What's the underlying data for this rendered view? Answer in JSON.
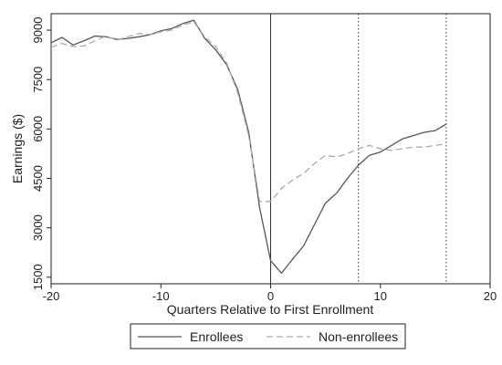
{
  "chart_data": {
    "type": "line",
    "title": "",
    "xlabel": "Quarters Relative to First Enrollment",
    "ylabel": "Earnings ($)",
    "xlim": [
      -20,
      20
    ],
    "ylim": [
      1300,
      9500
    ],
    "xticks": [
      -20,
      -10,
      0,
      10,
      20
    ],
    "xtick_labels": [
      "-20",
      "-10",
      "0",
      "10",
      "20"
    ],
    "yticks": [
      1500,
      3000,
      4500,
      6000,
      7500,
      9000
    ],
    "ytick_labels": [
      "1500",
      "3000",
      "4500",
      "6000",
      "7500",
      "9000"
    ],
    "grid": false,
    "vertical_lines": [
      {
        "x": 0,
        "style": "solid"
      },
      {
        "x": 8,
        "style": "dotted"
      },
      {
        "x": 16,
        "style": "dotted"
      }
    ],
    "legend_position": "bottom",
    "series": [
      {
        "name": "Enrollees",
        "color": "#555555",
        "dash": "solid",
        "x": [
          -20,
          -19,
          -18,
          -17,
          -16,
          -15,
          -14,
          -13,
          -12,
          -11,
          -10,
          -9,
          -8,
          -7,
          -6,
          -5,
          -4,
          -3,
          -2,
          -1,
          0,
          1,
          2,
          3,
          4,
          5,
          6,
          7,
          8,
          9,
          10,
          11,
          12,
          13,
          14,
          15,
          16
        ],
        "values": [
          8620,
          8780,
          8550,
          8680,
          8820,
          8800,
          8720,
          8750,
          8800,
          8860,
          8980,
          9050,
          9200,
          9300,
          8750,
          8400,
          7950,
          7200,
          5900,
          3600,
          2000,
          1620,
          2050,
          2450,
          3100,
          3750,
          4050,
          4500,
          4900,
          5200,
          5300,
          5500,
          5700,
          5800,
          5900,
          5950,
          6150
        ]
      },
      {
        "name": "Non-enrollees",
        "color": "#aaaaaa",
        "dash": "dashed",
        "x": [
          -20,
          -19,
          -18,
          -17,
          -16,
          -15,
          -14,
          -13,
          -12,
          -11,
          -10,
          -9,
          -8,
          -7,
          -6,
          -5,
          -4,
          -3,
          -2,
          -1,
          0,
          1,
          2,
          3,
          4,
          5,
          6,
          7,
          8,
          9,
          10,
          11,
          12,
          13,
          14,
          15,
          16
        ],
        "values": [
          8480,
          8600,
          8500,
          8520,
          8680,
          8820,
          8700,
          8800,
          8900,
          8870,
          8950,
          9000,
          9150,
          9250,
          8800,
          8500,
          8000,
          7100,
          5800,
          3800,
          3800,
          4200,
          4450,
          4650,
          4950,
          5200,
          5150,
          5250,
          5400,
          5500,
          5400,
          5350,
          5400,
          5450,
          5450,
          5500,
          5550
        ]
      }
    ]
  }
}
